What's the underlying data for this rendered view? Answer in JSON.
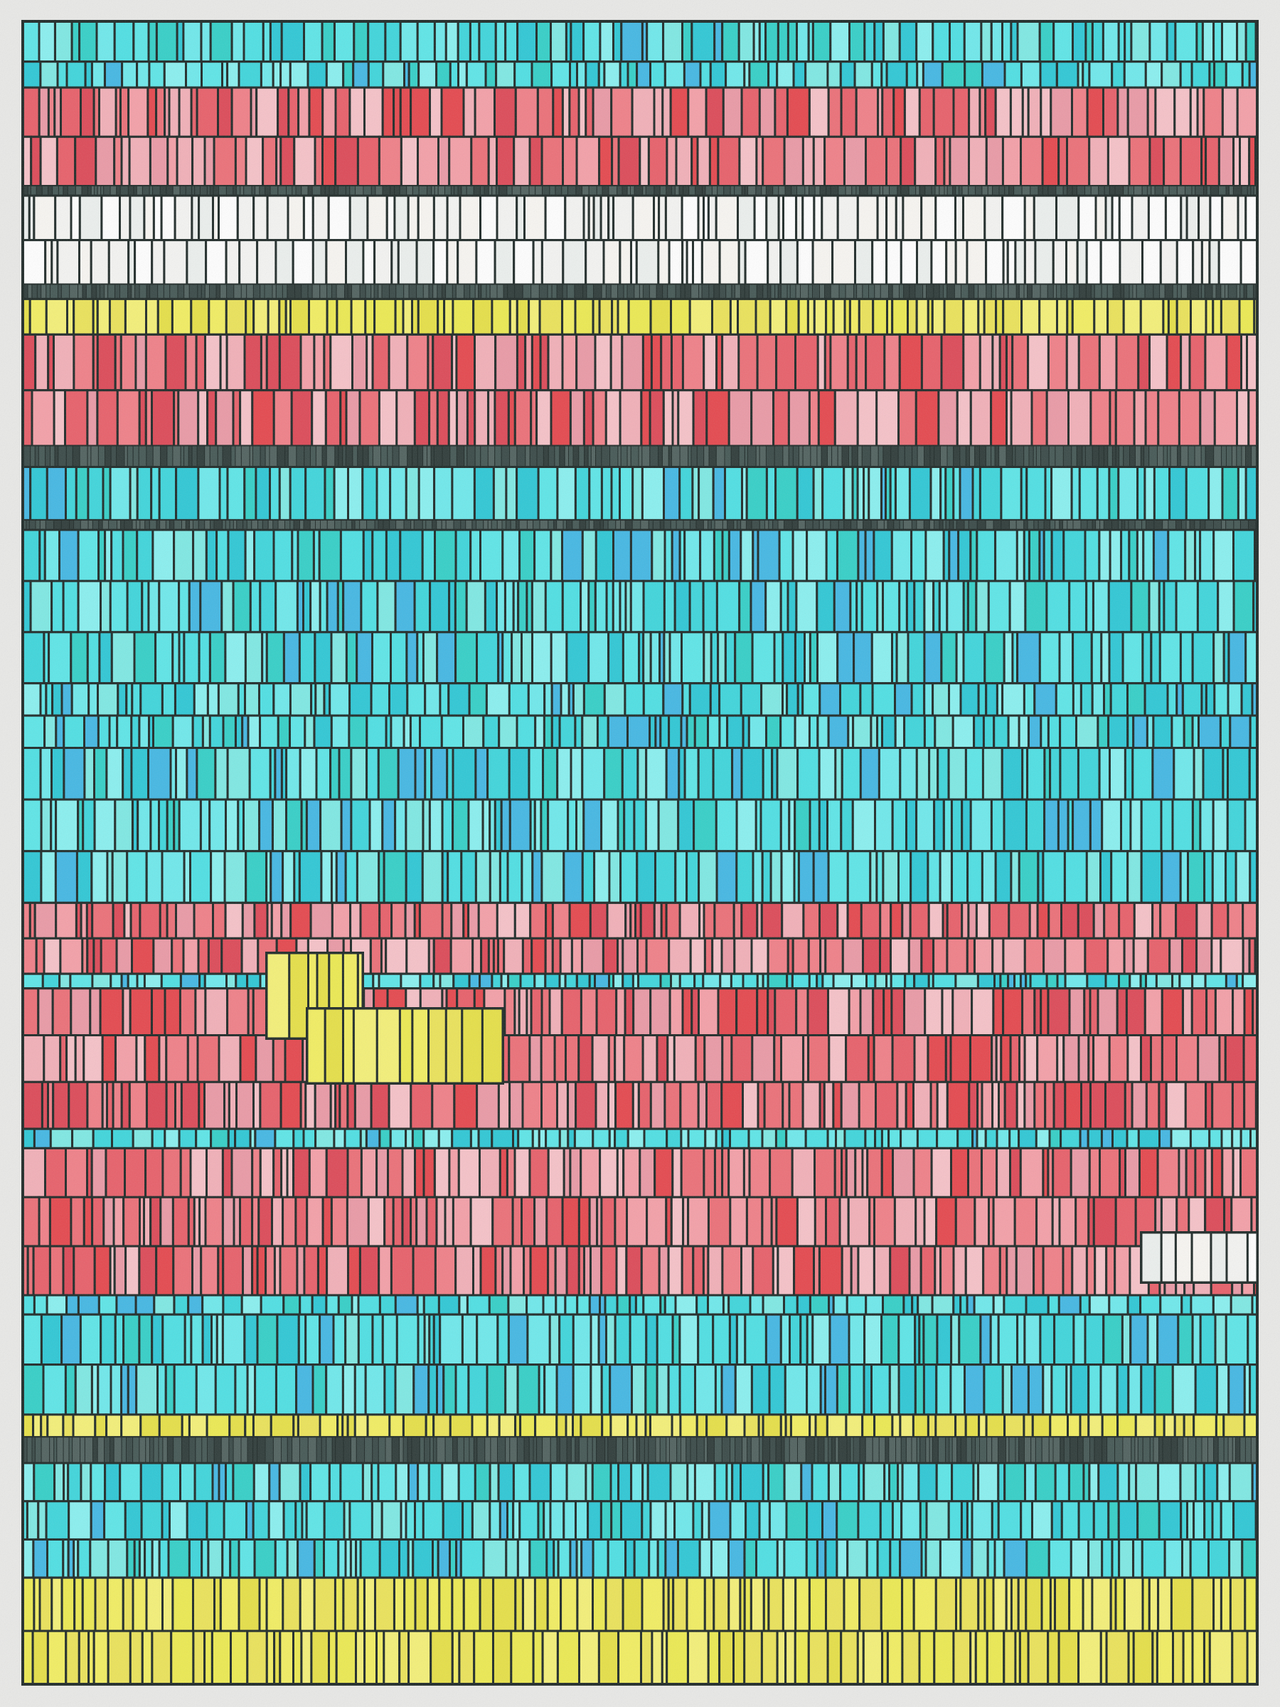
{
  "artwork": {
    "kind": "generative-abstract-stripes",
    "paper_color": "#e9e9e7",
    "outline_color": "#1f2a28",
    "grain_texture": true,
    "palettes": {
      "cyan": [
        "#3fd6dc",
        "#4fe0e4",
        "#5ee6e8",
        "#6fe9ec",
        "#2fc8d6",
        "#44b8e4",
        "#7fe9e4",
        "#35d0c8",
        "#8af0f0"
      ],
      "pink": [
        "#e8606a",
        "#f08088",
        "#ea9aa6",
        "#f2b0b8",
        "#e5484e",
        "#f4a0a8",
        "#ec7078",
        "#f6c2c8",
        "#dd4a58"
      ],
      "yellow": [
        "#ecea52",
        "#f2ee62",
        "#e6e048",
        "#f4f078",
        "#ebe35a"
      ],
      "white": [
        "#f4f4f2",
        "#ffffff",
        "#ecf0ee",
        "#f8f6f2"
      ],
      "dark": [
        "#3a4a48",
        "#455855",
        "#2f3c3a",
        "#51625f"
      ]
    },
    "bands": [
      {
        "palette": "cyan",
        "share": 0.025
      },
      {
        "palette": "cyan",
        "share": 0.016
      },
      {
        "palette": "pink",
        "share": 0.061
      },
      {
        "palette": "dark",
        "share": 0.006
      },
      {
        "palette": "white",
        "share": 0.055
      },
      {
        "palette": "dark",
        "share": 0.009
      },
      {
        "palette": "yellow",
        "share": 0.022
      },
      {
        "palette": "pink",
        "share": 0.069
      },
      {
        "palette": "dark",
        "share": 0.013
      },
      {
        "palette": "cyan",
        "share": 0.033
      },
      {
        "palette": "dark",
        "share": 0.006
      },
      {
        "palette": "cyan",
        "share": 0.095
      },
      {
        "palette": "cyan",
        "share": 0.04
      },
      {
        "palette": "cyan",
        "share": 0.096
      },
      {
        "palette": "pink",
        "share": 0.044
      },
      {
        "palette": "cyan",
        "share": 0.009
      },
      {
        "palette": "pink",
        "share": 0.087
      },
      {
        "palette": "cyan",
        "share": 0.012
      },
      {
        "palette": "pink",
        "share": 0.091
      },
      {
        "palette": "cyan",
        "share": 0.012
      },
      {
        "palette": "cyan",
        "share": 0.062
      },
      {
        "palette": "yellow",
        "share": 0.014
      },
      {
        "palette": "dark",
        "share": 0.016
      },
      {
        "palette": "cyan",
        "share": 0.071
      },
      {
        "palette": "yellow",
        "share": 0.066
      }
    ],
    "accent_blocks": [
      {
        "palette": "yellow",
        "label": "yellow-accent-block-upper"
      },
      {
        "palette": "yellow",
        "label": "yellow-accent-block-lower"
      },
      {
        "palette": "white",
        "label": "white-accent-block"
      }
    ]
  }
}
